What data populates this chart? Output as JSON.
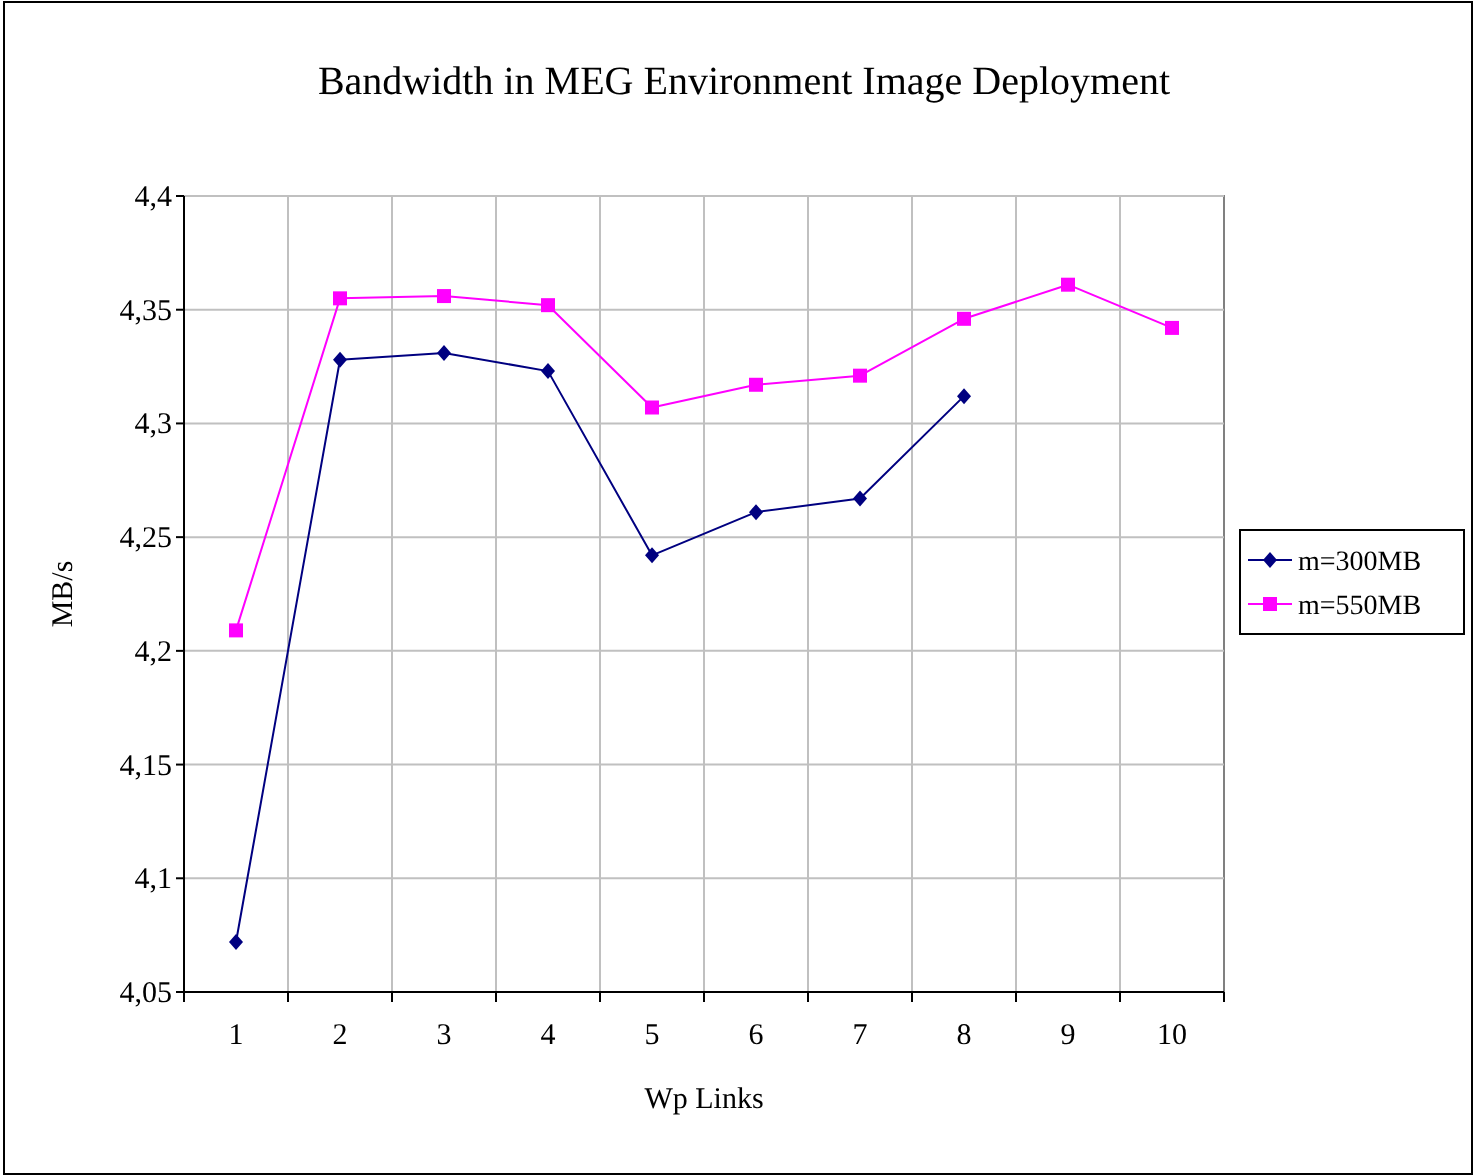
{
  "chart_data": {
    "type": "line",
    "title": "Bandwidth in MEG Environment Image Deployment",
    "xlabel": "Wp Links",
    "ylabel": "MB/s",
    "categories": [
      "1",
      "2",
      "3",
      "4",
      "5",
      "6",
      "7",
      "8",
      "9",
      "10"
    ],
    "series": [
      {
        "name": "m=300MB",
        "color": "#000080",
        "marker": "diamond",
        "values": [
          4.072,
          4.328,
          4.331,
          4.323,
          4.242,
          4.261,
          4.267,
          4.312,
          null,
          null
        ]
      },
      {
        "name": "m=550MB",
        "color": "#ff00ff",
        "marker": "square",
        "values": [
          4.209,
          4.355,
          4.356,
          4.352,
          4.307,
          4.317,
          4.321,
          4.346,
          4.361,
          4.342
        ]
      }
    ],
    "ylim": [
      4.05,
      4.4
    ],
    "yticks": [
      {
        "value": 4.05,
        "label": "4,05"
      },
      {
        "value": 4.1,
        "label": "4,1"
      },
      {
        "value": 4.15,
        "label": "4,15"
      },
      {
        "value": 4.2,
        "label": "4,2"
      },
      {
        "value": 4.25,
        "label": "4,25"
      },
      {
        "value": 4.3,
        "label": "4,3"
      },
      {
        "value": 4.35,
        "label": "4,35"
      },
      {
        "value": 4.4,
        "label": "4,4"
      }
    ],
    "grid": true,
    "legend": "right",
    "line_style": "solid"
  }
}
